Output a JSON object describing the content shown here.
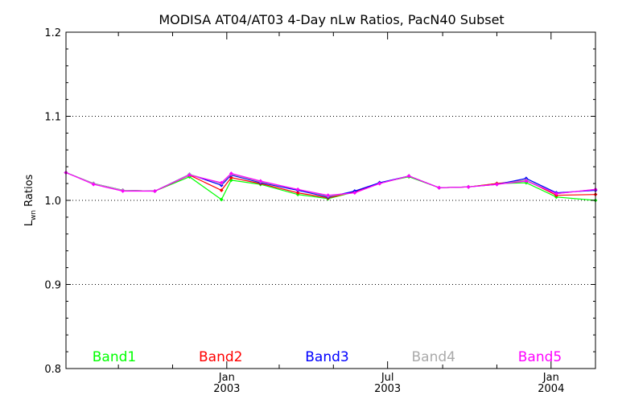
{
  "chart_data": {
    "type": "line",
    "title": "MODISA AT04/AT03 4-Day nLw Ratios, PacN40 Subset",
    "ylabel": "Lwn Ratios",
    "ylabel_main": "L",
    "ylabel_sub": "wn",
    "ylabel_rest": " Ratios",
    "ylim": [
      0.8,
      1.2
    ],
    "y_ticks": [
      "0.8",
      "0.9",
      "1.0",
      "1.1",
      "1.2"
    ],
    "y_tick_values": [
      0.8,
      0.9,
      1.0,
      1.1,
      1.2
    ],
    "x_range": [
      "2002-07-04",
      "2004-02-20"
    ],
    "x_labels": [
      {
        "date": "2003-01-01",
        "month": "Jan",
        "year": "2003"
      },
      {
        "date": "2003-07-01",
        "month": "Jul",
        "year": "2003"
      },
      {
        "date": "2004-01-01",
        "month": "Jan",
        "year": "2004"
      }
    ],
    "x_minor_ticks": [
      "2002-09-01",
      "2002-11-01",
      "2003-03-01",
      "2003-05-01",
      "2003-09-01",
      "2003-11-01"
    ],
    "gridlines_y": [
      0.9,
      1.0,
      1.1
    ],
    "grid_style": "dotted",
    "x": [
      "2002-07-04",
      "2002-08-04",
      "2002-09-06",
      "2002-10-12",
      "2002-11-20",
      "2002-12-26",
      "2003-01-06",
      "2003-02-08",
      "2003-03-22",
      "2003-04-25",
      "2003-05-25",
      "2003-06-22",
      "2003-07-25",
      "2003-08-28",
      "2003-09-30",
      "2003-11-01",
      "2003-12-04",
      "2004-01-07",
      "2004-02-20"
    ],
    "series": [
      {
        "name": "Band1",
        "color": "#00ff00",
        "values": [
          1.033,
          1.02,
          1.012,
          1.011,
          1.028,
          1.001,
          1.024,
          1.019,
          1.007,
          1.002,
          1.01,
          1.021,
          1.028,
          1.015,
          1.016,
          1.02,
          1.021,
          1.004,
          1.0
        ]
      },
      {
        "name": "Band2",
        "color": "#ff0000",
        "values": [
          1.033,
          1.02,
          1.012,
          1.011,
          1.03,
          1.012,
          1.027,
          1.02,
          1.009,
          1.003,
          1.01,
          1.02,
          1.029,
          1.015,
          1.016,
          1.02,
          1.024,
          1.006,
          1.007
        ]
      },
      {
        "name": "Band3",
        "color": "#0000ff",
        "values": [
          1.033,
          1.02,
          1.012,
          1.011,
          1.031,
          1.018,
          1.03,
          1.021,
          1.012,
          1.004,
          1.011,
          1.021,
          1.029,
          1.015,
          1.016,
          1.019,
          1.026,
          1.009,
          1.012
        ]
      },
      {
        "name": "Band4",
        "color": "#aaaaaa",
        "values": [
          1.033,
          1.02,
          1.012,
          1.011,
          1.031,
          1.02,
          1.031,
          1.022,
          1.013,
          1.005,
          1.009,
          1.02,
          1.029,
          1.015,
          1.016,
          1.019,
          1.024,
          1.008,
          1.013
        ]
      },
      {
        "name": "Band5",
        "color": "#ff00ff",
        "values": [
          1.033,
          1.019,
          1.011,
          1.011,
          1.03,
          1.021,
          1.032,
          1.023,
          1.013,
          1.006,
          1.009,
          1.02,
          1.029,
          1.015,
          1.016,
          1.019,
          1.023,
          1.008,
          1.013
        ]
      }
    ],
    "legend_placement": "bottom, inside plot"
  }
}
